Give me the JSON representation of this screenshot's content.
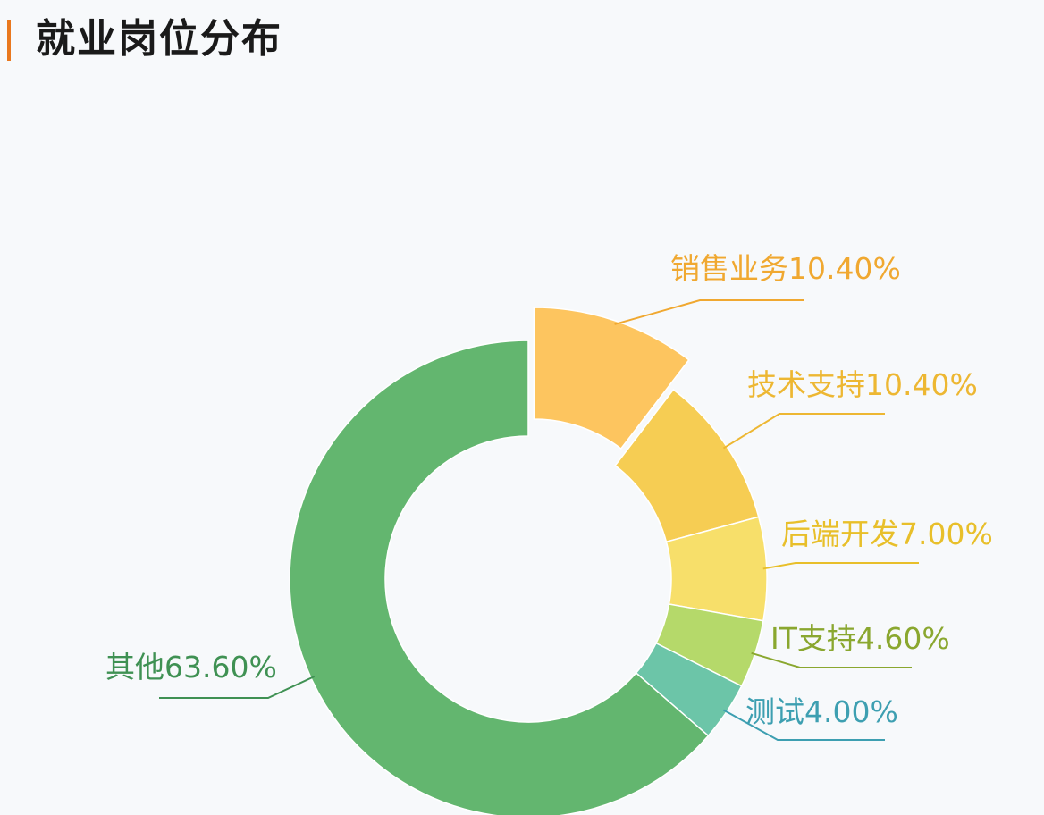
{
  "header": {
    "title": "就业岗位分布",
    "accent_color": "#e9781e"
  },
  "chart_data": {
    "type": "pie",
    "variant": "donut",
    "title": "就业岗位分布",
    "start_angle_deg": 0,
    "direction": "clockwise",
    "slices": [
      {
        "name": "销售业务",
        "value": 10.4,
        "label": "销售业务10.40%",
        "color": "#fdc55f",
        "exploded": true,
        "label_color": "#f0a830",
        "label_side": "right"
      },
      {
        "name": "技术支持",
        "value": 10.4,
        "label": "技术支持10.40%",
        "color": "#f6cd53",
        "exploded": false,
        "label_color": "#edb732",
        "label_side": "right"
      },
      {
        "name": "后端开发",
        "value": 7.0,
        "label": "后端开发7.00%",
        "color": "#f7df6a",
        "exploded": false,
        "label_color": "#e8bf2a",
        "label_side": "right"
      },
      {
        "name": "IT支持",
        "value": 4.6,
        "label": "IT支持4.60%",
        "color": "#b5d96a",
        "exploded": false,
        "label_color": "#8aa72f",
        "label_side": "right"
      },
      {
        "name": "测试",
        "value": 4.0,
        "label": "测试4.00%",
        "color": "#6cc5a8",
        "exploded": false,
        "label_color": "#3d9fb1",
        "label_side": "right"
      },
      {
        "name": "其他",
        "value": 63.6,
        "label": "其他63.60%",
        "color": "#63b66f",
        "exploded": false,
        "label_color": "#3f9153",
        "label_side": "left"
      }
    ]
  }
}
